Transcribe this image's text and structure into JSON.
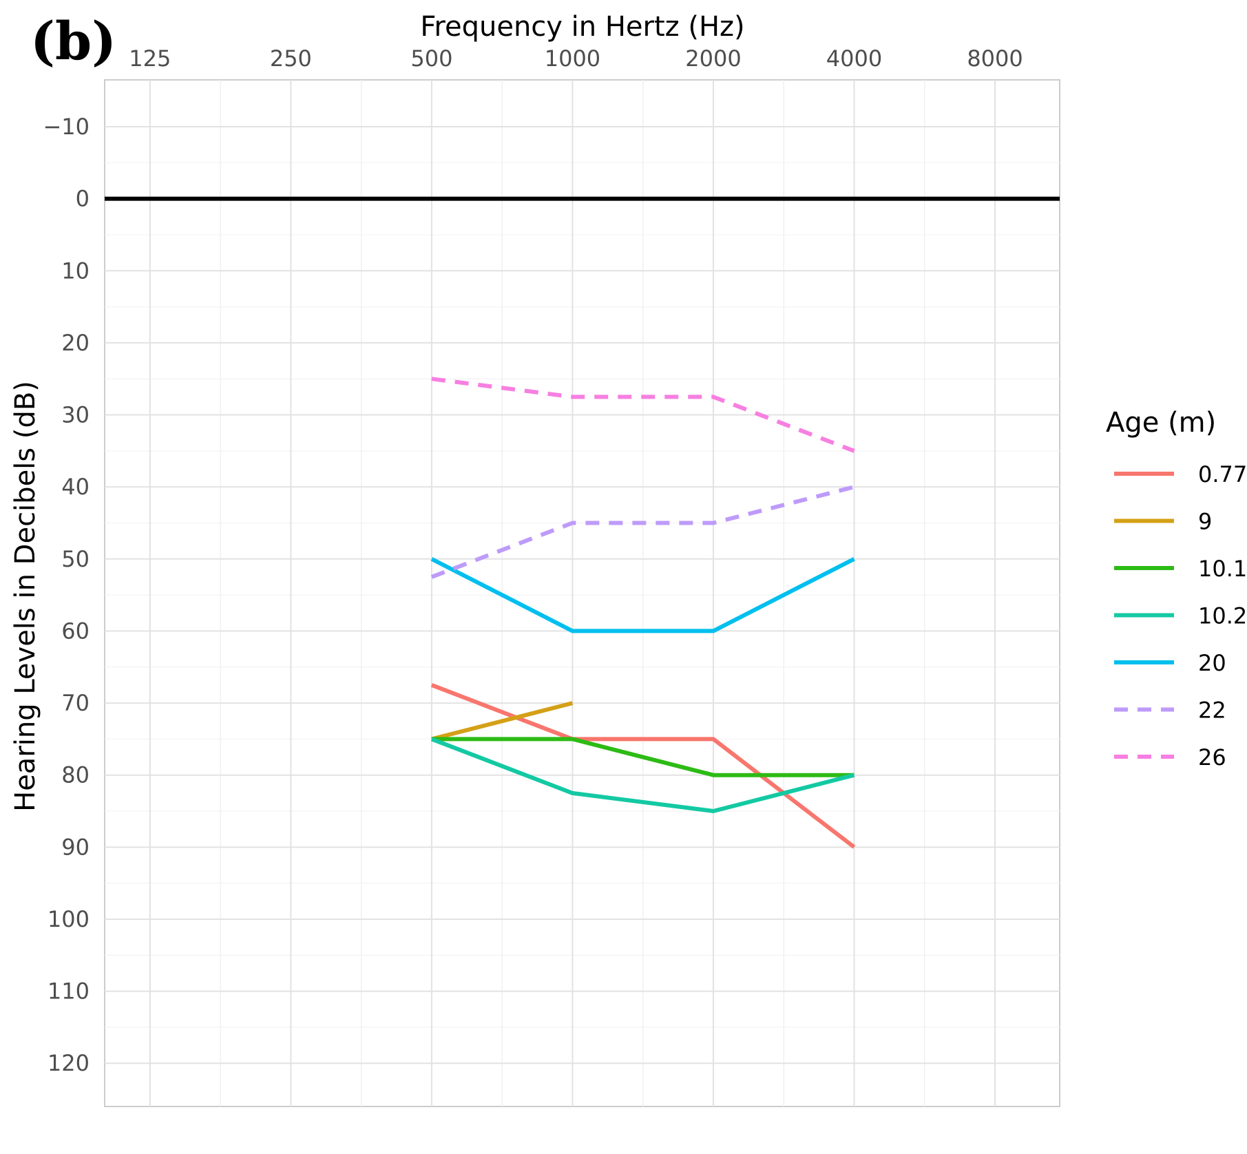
{
  "panel_label": "(b)",
  "chart_data": {
    "type": "line",
    "xlabel": "Frequency in Hertz (Hz)",
    "ylabel": "Hearing Levels in Decibels (dB)",
    "x_scale": "log2",
    "x_position": "top",
    "y_reversed": true,
    "x_ticks": [
      125,
      250,
      500,
      1000,
      2000,
      4000,
      8000
    ],
    "y_ticks": [
      -10,
      0,
      10,
      20,
      30,
      40,
      50,
      60,
      70,
      80,
      90,
      100,
      110,
      120
    ],
    "xlim": [
      100,
      11000
    ],
    "ylim": [
      -16.5,
      126
    ],
    "grid": true,
    "reference_line": {
      "y": 0,
      "color": "#000000"
    },
    "legend": {
      "title": "Age (m)",
      "position": "right"
    },
    "series": [
      {
        "name": "0.77",
        "color": "#F8766D",
        "dashed": false,
        "x": [
          500,
          1000,
          2000,
          4000
        ],
        "y": [
          67.5,
          75,
          75,
          90
        ]
      },
      {
        "name": "9",
        "color": "#D4A017",
        "dashed": false,
        "x": [
          500,
          1000
        ],
        "y": [
          75,
          70
        ]
      },
      {
        "name": "10.1",
        "color": "#2DBB15",
        "dashed": false,
        "x": [
          500,
          1000,
          2000,
          4000
        ],
        "y": [
          75,
          75,
          80,
          80
        ]
      },
      {
        "name": "10.2",
        "color": "#13C9A3",
        "dashed": false,
        "x": [
          500,
          1000,
          2000,
          4000
        ],
        "y": [
          75,
          82.5,
          85,
          80
        ]
      },
      {
        "name": "20",
        "color": "#00BFEE",
        "dashed": false,
        "x": [
          500,
          1000,
          2000,
          4000
        ],
        "y": [
          50,
          60,
          60,
          50
        ]
      },
      {
        "name": "22",
        "color": "#BE9BFA",
        "dashed": true,
        "x": [
          500,
          1000,
          2000,
          4000
        ],
        "y": [
          52.5,
          45,
          45,
          40
        ]
      },
      {
        "name": "26",
        "color": "#F77FE1",
        "dashed": true,
        "x": [
          500,
          1000,
          2000,
          4000
        ],
        "y": [
          25,
          27.5,
          27.5,
          35
        ]
      }
    ]
  }
}
